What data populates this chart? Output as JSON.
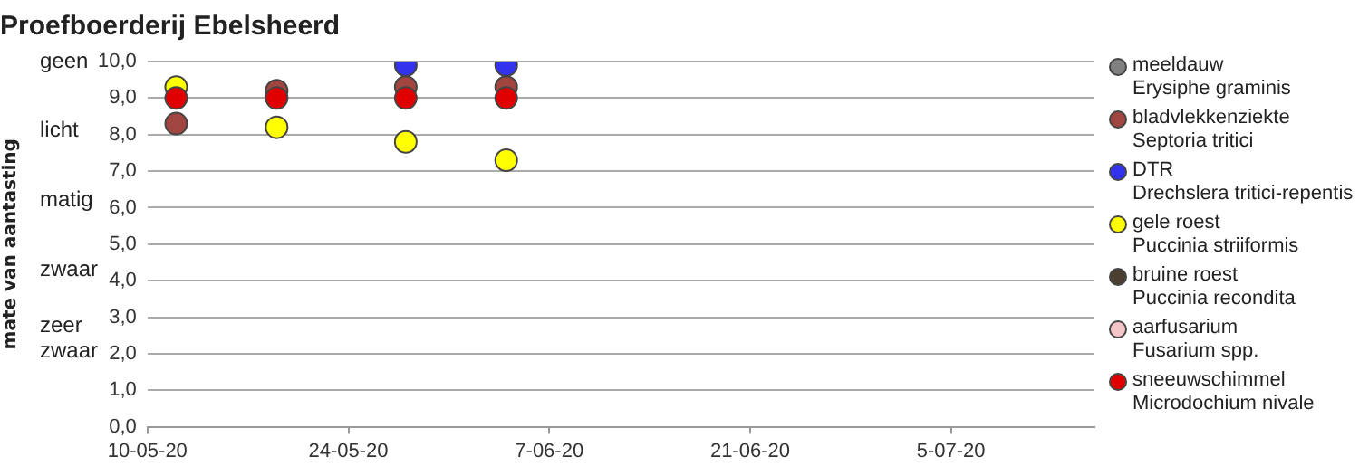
{
  "chart_data": {
    "type": "scatter",
    "title": "Proefboerderij Ebelsheerd",
    "ylabel": "mate van aantasting",
    "x": [
      "2020-05-12",
      "2020-05-19",
      "2020-05-28",
      "2020-06-04"
    ],
    "series": [
      {
        "name": "meeldauw\nErysiphe graminis",
        "color": "#808080",
        "values": [
          null,
          null,
          null,
          null
        ]
      },
      {
        "name": "bladvlekkenziekte\nSeptoria tritici",
        "color": "#a0453f",
        "values": [
          8.3,
          9.2,
          9.3,
          9.3
        ]
      },
      {
        "name": "DTR\nDrechslera tritici-repentis",
        "color": "#3333ee",
        "values": [
          null,
          null,
          9.9,
          9.9
        ]
      },
      {
        "name": "gele roest\nPuccinia striiformis",
        "color": "#ffff00",
        "values": [
          9.3,
          8.2,
          7.8,
          7.3
        ]
      },
      {
        "name": "bruine roest\nPuccinia recondita",
        "color": "#4a3f30",
        "values": [
          null,
          null,
          null,
          null
        ]
      },
      {
        "name": "aarfusarium\nFusarium spp.",
        "color": "#f5c6c8",
        "values": [
          null,
          null,
          null,
          null
        ]
      },
      {
        "name": "sneeuwschimmel\nMicrodochium nivale",
        "color": "#e00000",
        "values": [
          9.0,
          9.0,
          9.0,
          9.0
        ]
      }
    ],
    "xlim": [
      "2020-05-10",
      "2020-07-15"
    ],
    "xticks": [
      {
        "value": "2020-05-10",
        "label": "10-05-20"
      },
      {
        "value": "2020-05-24",
        "label": "24-05-20"
      },
      {
        "value": "2020-06-07",
        "label": "7-06-20"
      },
      {
        "value": "2020-06-21",
        "label": "21-06-20"
      },
      {
        "value": "2020-07-05",
        "label": "5-07-20"
      }
    ],
    "ylim": [
      0,
      10
    ],
    "yticks": [
      {
        "value": 0,
        "label": "0,0"
      },
      {
        "value": 1,
        "label": "1,0"
      },
      {
        "value": 2,
        "label": "2,0"
      },
      {
        "value": 3,
        "label": "3,0"
      },
      {
        "value": 4,
        "label": "4,0"
      },
      {
        "value": 5,
        "label": "5,0"
      },
      {
        "value": 6,
        "label": "6,0"
      },
      {
        "value": 7,
        "label": "7,0"
      },
      {
        "value": 8,
        "label": "8,0"
      },
      {
        "value": 9,
        "label": "9,0"
      },
      {
        "value": 10,
        "label": "10,0"
      }
    ],
    "annotations": [
      "geen",
      "licht",
      "matig",
      "zwaar",
      "zeer\nzwaar"
    ],
    "grid": "y",
    "legend": "right",
    "marker": "circle"
  }
}
